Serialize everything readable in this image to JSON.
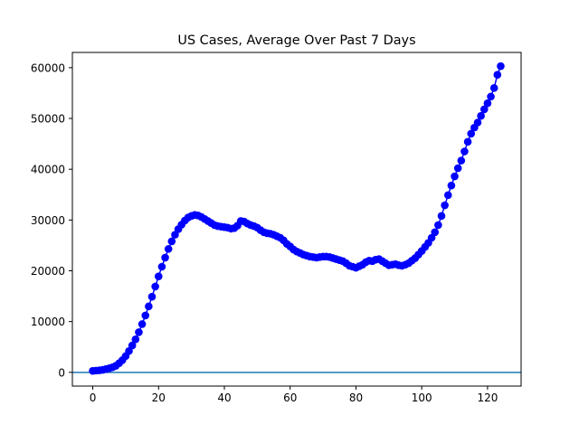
{
  "chart_data": {
    "type": "line",
    "title": "US Cases, Average Over Past 7 Days",
    "xlabel": "",
    "ylabel": "",
    "xlim": [
      -6.2,
      130.2
    ],
    "ylim": [
      -2700,
      63000
    ],
    "xticks": [
      0,
      20,
      40,
      60,
      80,
      100,
      120
    ],
    "yticks": [
      0,
      10000,
      20000,
      30000,
      40000,
      50000,
      60000
    ],
    "grid": false,
    "legend": "none",
    "series": [
      {
        "color": "#0000ff",
        "marker": "circle",
        "x": [
          0,
          1,
          2,
          3,
          4,
          5,
          6,
          7,
          8,
          9,
          10,
          11,
          12,
          13,
          14,
          15,
          16,
          17,
          18,
          19,
          20,
          21,
          22,
          23,
          24,
          25,
          26,
          27,
          28,
          29,
          30,
          31,
          32,
          33,
          34,
          35,
          36,
          37,
          38,
          39,
          40,
          41,
          42,
          43,
          44,
          45,
          46,
          47,
          48,
          49,
          50,
          51,
          52,
          53,
          54,
          55,
          56,
          57,
          58,
          59,
          60,
          61,
          62,
          63,
          64,
          65,
          66,
          67,
          68,
          69,
          70,
          71,
          72,
          73,
          74,
          75,
          76,
          77,
          78,
          79,
          80,
          81,
          82,
          83,
          84,
          85,
          86,
          87,
          88,
          89,
          90,
          91,
          92,
          93,
          94,
          95,
          96,
          97,
          98,
          99,
          100,
          101,
          102,
          103,
          104,
          105,
          106,
          107,
          108,
          109,
          110,
          111,
          112,
          113,
          114,
          115,
          116,
          117,
          118,
          119,
          120,
          121,
          122,
          123,
          124
        ],
        "y": [
          300,
          350,
          400,
          500,
          650,
          800,
          1000,
          1300,
          1800,
          2400,
          3200,
          4200,
          5300,
          6500,
          7900,
          9500,
          11200,
          13000,
          14900,
          16900,
          18900,
          20800,
          22600,
          24300,
          25800,
          27100,
          28200,
          29100,
          29900,
          30500,
          30800,
          31000,
          30900,
          30600,
          30200,
          29800,
          29400,
          29000,
          28800,
          28700,
          28600,
          28500,
          28300,
          28400,
          28900,
          29800,
          29700,
          29300,
          29000,
          28800,
          28500,
          28000,
          27600,
          27400,
          27300,
          27100,
          26800,
          26500,
          26000,
          25300,
          24800,
          24200,
          23800,
          23500,
          23200,
          23000,
          22800,
          22700,
          22600,
          22700,
          22800,
          22800,
          22700,
          22500,
          22300,
          22100,
          21900,
          21500,
          21000,
          20800,
          20600,
          20900,
          21200,
          21700,
          22000,
          21900,
          22200,
          22300,
          21900,
          21500,
          21100,
          21200,
          21300,
          21100,
          21000,
          21200,
          21500,
          22000,
          22500,
          23200,
          23900,
          24700,
          25500,
          26500,
          27600,
          29000,
          30800,
          32900,
          34900,
          36800,
          38600,
          40200,
          41700,
          43500,
          45400,
          47000,
          48200,
          49200,
          50500,
          51800,
          53000,
          54300,
          56000,
          58600,
          60300
        ]
      }
    ]
  }
}
